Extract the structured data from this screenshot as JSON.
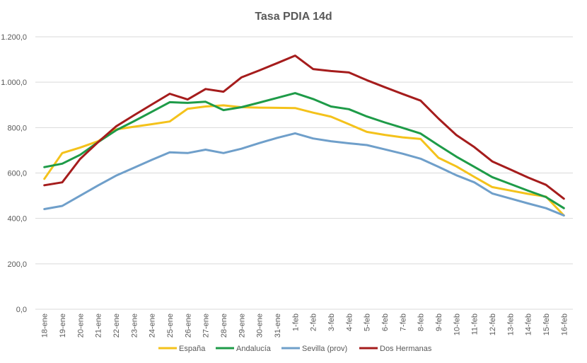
{
  "chart_data": {
    "type": "line",
    "title": "Tasa PDIA 14d",
    "xlabel": "",
    "ylabel": "",
    "ylim": [
      0,
      1200
    ],
    "y_ticks": [
      "0,0",
      "200,0",
      "400,0",
      "600,0",
      "800,0",
      "1.000,0",
      "1.200,0"
    ],
    "y_tick_values": [
      0,
      200,
      400,
      600,
      800,
      1000,
      1200
    ],
    "grid": true,
    "legend_position": "bottom",
    "categories": [
      "18-ene",
      "19-ene",
      "20-ene",
      "21-ene",
      "22-ene",
      "23-ene",
      "24-ene",
      "25-ene",
      "26-ene",
      "27-ene",
      "28-ene",
      "29-ene",
      "30-ene",
      "31-ene",
      "1-feb",
      "2-feb",
      "3-feb",
      "4-feb",
      "5-feb",
      "6-feb",
      "7-feb",
      "8-feb",
      "9-feb",
      "10-feb",
      "11-feb",
      "12-feb",
      "13-feb",
      "14-feb",
      "15-feb",
      "16-feb"
    ],
    "series": [
      {
        "name": "España",
        "color": "#F4C21B",
        "values": [
          574,
          688,
          712,
          740,
          792,
          804,
          815,
          827,
          883,
          893,
          898,
          890,
          888,
          887,
          886,
          866,
          848,
          815,
          781,
          768,
          757,
          750,
          667,
          629,
          583,
          538,
          523,
          508,
          496,
          413
        ]
      },
      {
        "name": "Andalucía",
        "color": "#1E9B48",
        "values": [
          626,
          641,
          680,
          736,
          788,
          828,
          870,
          912,
          909,
          914,
          877,
          890,
          910,
          931,
          952,
          926,
          893,
          881,
          849,
          823,
          799,
          774,
          722,
          672,
          627,
          582,
          552,
          522,
          494,
          445
        ]
      },
      {
        "name": "Sevilla (prov)",
        "color": "#6F9FCA",
        "values": [
          441,
          455,
          500,
          545,
          588,
          623,
          658,
          691,
          688,
          703,
          688,
          707,
          732,
          755,
          775,
          752,
          740,
          731,
          723,
          704,
          685,
          663,
          627,
          590,
          559,
          510,
          488,
          466,
          445,
          413
        ]
      },
      {
        "name": "Dos Hermanas",
        "color": "#A51C1C",
        "values": [
          546,
          559,
          662,
          736,
          805,
          854,
          902,
          949,
          924,
          970,
          958,
          1021,
          1052,
          1084,
          1117,
          1058,
          1049,
          1043,
          1009,
          978,
          948,
          919,
          840,
          767,
          714,
          651,
          616,
          580,
          548,
          487
        ]
      }
    ]
  }
}
